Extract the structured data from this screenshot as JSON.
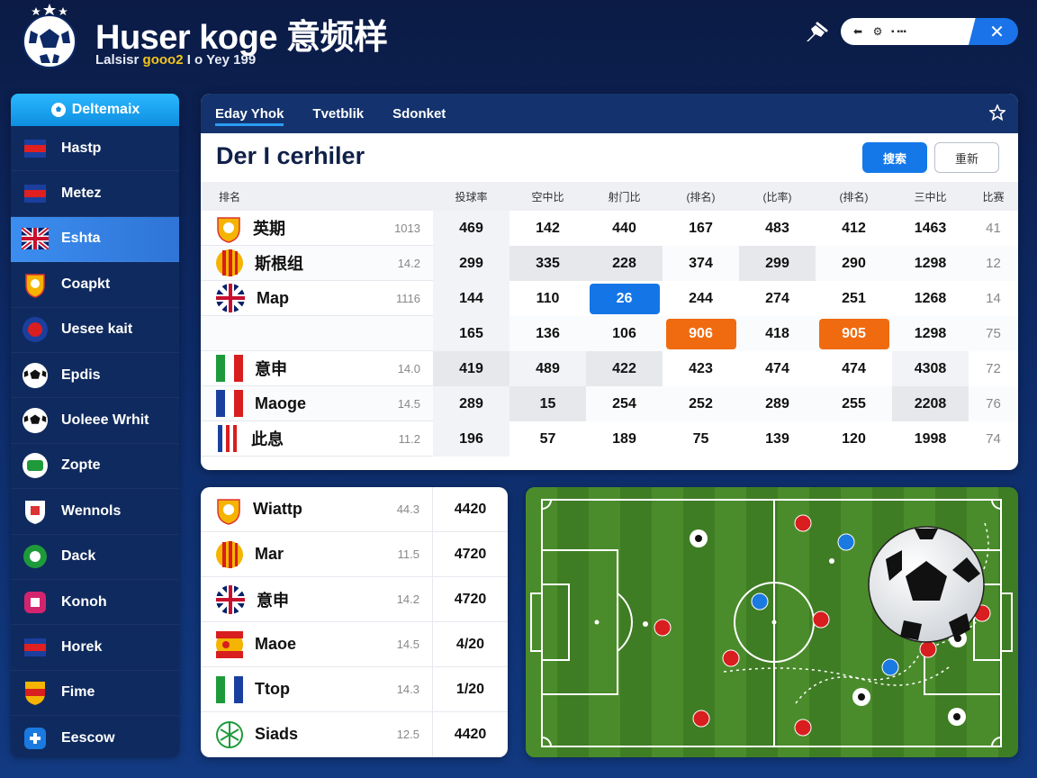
{
  "header": {
    "title": "Huser koge 意频样",
    "subtitle_pre": "Lalsisr",
    "subtitle_hl": "gooo2",
    "subtitle_post": "I o Yey 199"
  },
  "search": {
    "placeholder": "▪ ▪▪▪"
  },
  "sidebar": {
    "header_label": "Deltemaix",
    "items": [
      {
        "label": "Hastp",
        "icon": "flag-icon"
      },
      {
        "label": "Metez",
        "icon": "flag-icon"
      },
      {
        "label": "Eshta",
        "icon": "uk-flag-icon"
      },
      {
        "label": "Coapkt",
        "icon": "crest-icon"
      },
      {
        "label": "Uesee kait",
        "icon": "badge-icon"
      },
      {
        "label": "Epdis",
        "icon": "soccer-ball-icon"
      },
      {
        "label": "Uoleee Wrhit",
        "icon": "soccer-ball-icon"
      },
      {
        "label": "Zopte",
        "icon": "green-badge-icon"
      },
      {
        "label": "Wennols",
        "icon": "shield-icon"
      },
      {
        "label": "Dack",
        "icon": "green-crest-icon"
      },
      {
        "label": "Konoh",
        "icon": "pink-badge-icon"
      },
      {
        "label": "Horek",
        "icon": "flag-icon"
      },
      {
        "label": "Fime",
        "icon": "spain-badge-icon"
      },
      {
        "label": "Eescow",
        "icon": "blue-badge-icon"
      }
    ]
  },
  "panel": {
    "tabs": [
      "Eday Yhok",
      "Tvetblik",
      "Sdonket"
    ],
    "title": "Der I cerhiler",
    "primary_button": "搜索",
    "secondary_button": "重新",
    "columns": [
      "排名",
      "投球率",
      "空中比",
      "射门比",
      "(排名)",
      "(比率)",
      "(排名)",
      "三中比",
      "比赛"
    ],
    "rows": [
      {
        "team": "英期",
        "score": "1013",
        "values": [
          "469",
          "142",
          "440",
          "167",
          "483",
          "412",
          "1463",
          "41"
        ]
      },
      {
        "team": "斯根组",
        "score": "14.2",
        "values": [
          "299",
          "335",
          "228",
          "374",
          "299",
          "290",
          "1298",
          "12"
        ]
      },
      {
        "team": "Map",
        "score": "1116",
        "values": [
          "144",
          "110",
          "26",
          "244",
          "274",
          "251",
          "1268",
          "14"
        ]
      },
      {
        "team": "",
        "score": "",
        "values": [
          "165",
          "136",
          "106",
          "906",
          "418",
          "905",
          "1298",
          "75"
        ]
      },
      {
        "team": "意申",
        "score": "14.0",
        "values": [
          "419",
          "489",
          "422",
          "423",
          "474",
          "474",
          "4308",
          "72"
        ]
      },
      {
        "team": "Maoge",
        "score": "14.5",
        "values": [
          "289",
          "15",
          "254",
          "252",
          "289",
          "255",
          "2208",
          "76"
        ]
      },
      {
        "team": "此息",
        "score": "11.2",
        "values": [
          "196",
          "57",
          "189",
          "75",
          "139",
          "120",
          "1998",
          "74"
        ]
      }
    ]
  },
  "list": {
    "rows": [
      {
        "team": "Wiattp",
        "score": "44.3",
        "value": "4420"
      },
      {
        "team": "Mar",
        "score": "11.5",
        "value": "4720"
      },
      {
        "team": "意申",
        "score": "14.2",
        "value": "4720"
      },
      {
        "team": "Maoe",
        "score": "14.5",
        "value": "4/20"
      },
      {
        "team": "Ttop",
        "score": "14.3",
        "value": "1/20"
      },
      {
        "team": "Siads",
        "score": "12.5",
        "value": "4420"
      }
    ]
  },
  "colors": {
    "accent": "#1478e8",
    "highlight_orange": "#f06b10",
    "sidebar_bg": "#0f2a5e",
    "pitch_green": "#3f7d24"
  }
}
